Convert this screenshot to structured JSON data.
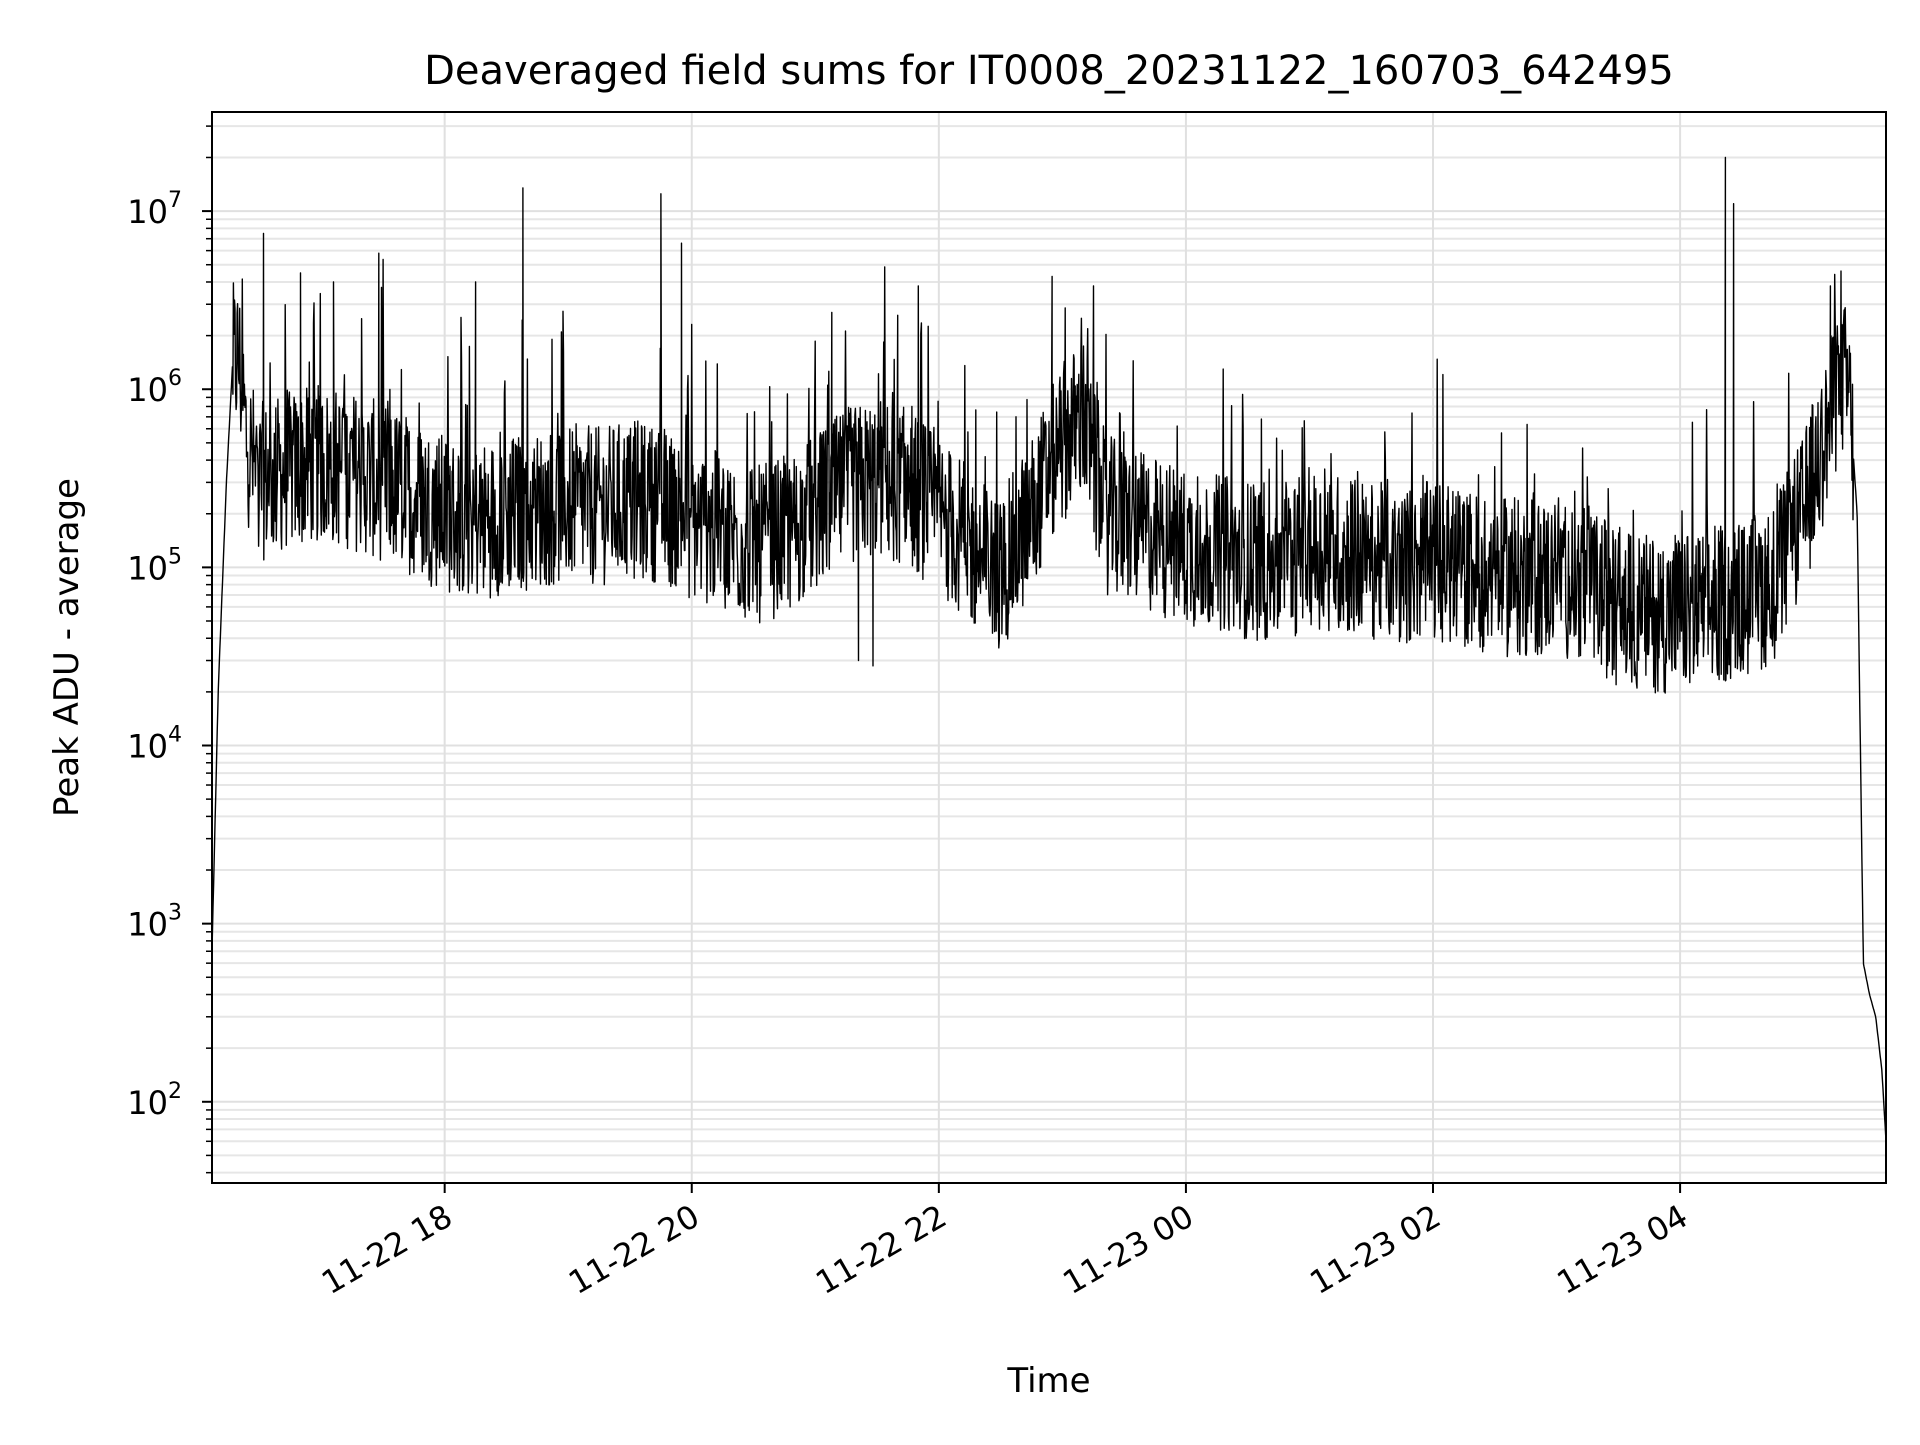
{
  "chart_data": {
    "type": "line",
    "title": "Deaveraged field sums for IT0008_20231122_160703_642495",
    "xlabel": "Time",
    "ylabel": "Peak ADU - average",
    "yscale": "log",
    "xlim": [
      "2023-11-22 16:07",
      "2023-11-23 05:40"
    ],
    "ylim": [
      35,
      36000000
    ],
    "x_ticks": [
      "11-22 18",
      "11-22 20",
      "11-22 22",
      "11-23 00",
      "11-23 02",
      "11-23 04"
    ],
    "x_tick_times": [
      "2023-11-22 18:00",
      "2023-11-22 20:00",
      "2023-11-22 22:00",
      "2023-11-23 00:00",
      "2023-11-23 02:00",
      "2023-11-23 04:00"
    ],
    "y_ticks": [
      {
        "base": "10",
        "exp": "2"
      },
      {
        "base": "10",
        "exp": "3"
      },
      {
        "base": "10",
        "exp": "4"
      },
      {
        "base": "10",
        "exp": "5"
      },
      {
        "base": "10",
        "exp": "6"
      },
      {
        "base": "10",
        "exp": "7"
      }
    ],
    "y_tick_values": [
      100,
      1000,
      10000,
      100000,
      1000000,
      10000000
    ],
    "grid": true,
    "series": [
      {
        "color": "#000000",
        "points": [
          [
            "2023-11-22 16:07",
            700
          ],
          [
            "2023-11-22 16:10",
            20000
          ],
          [
            "2023-11-22 16:14",
            300000
          ],
          [
            "2023-11-22 16:17",
            1400000
          ],
          [
            "2023-11-22 16:20",
            1500000
          ],
          [
            "2023-11-22 16:24",
            500000
          ],
          [
            "2023-11-22 16:30",
            300000
          ],
          [
            "2023-11-22 16:45",
            350000
          ],
          [
            "2023-11-22 17:00",
            380000
          ],
          [
            "2023-11-22 17:15",
            350000
          ],
          [
            "2023-11-22 17:30",
            300000
          ],
          [
            "2023-11-22 17:45",
            250000
          ],
          [
            "2023-11-22 18:00",
            200000
          ],
          [
            "2023-11-22 18:15",
            180000
          ],
          [
            "2023-11-22 18:30",
            200000
          ],
          [
            "2023-11-22 18:45",
            210000
          ],
          [
            "2023-11-22 19:00",
            230000
          ],
          [
            "2023-11-22 19:15",
            220000
          ],
          [
            "2023-11-22 19:30",
            240000
          ],
          [
            "2023-11-22 19:45",
            230000
          ],
          [
            "2023-11-22 20:00",
            180000
          ],
          [
            "2023-11-22 20:15",
            160000
          ],
          [
            "2023-11-22 20:30",
            130000
          ],
          [
            "2023-11-22 20:45",
            150000
          ],
          [
            "2023-11-22 21:00",
            200000
          ],
          [
            "2023-11-22 21:15",
            280000
          ],
          [
            "2023-11-22 21:30",
            320000
          ],
          [
            "2023-11-22 21:45",
            280000
          ],
          [
            "2023-11-22 22:00",
            200000
          ],
          [
            "2023-11-22 22:15",
            130000
          ],
          [
            "2023-11-22 22:30",
            90000
          ],
          [
            "2023-11-22 22:45",
            200000
          ],
          [
            "2023-11-22 23:00",
            500000
          ],
          [
            "2023-11-22 23:10",
            700000
          ],
          [
            "2023-11-22 23:20",
            200000
          ],
          [
            "2023-11-22 23:30",
            180000
          ],
          [
            "2023-11-22 23:45",
            150000
          ],
          [
            "2023-11-23 00:00",
            130000
          ],
          [
            "2023-11-23 00:15",
            120000
          ],
          [
            "2023-11-23 00:30",
            110000
          ],
          [
            "2023-11-23 00:45",
            100000
          ],
          [
            "2023-11-23 01:00",
            130000
          ],
          [
            "2023-11-23 01:15",
            120000
          ],
          [
            "2023-11-23 01:30",
            110000
          ],
          [
            "2023-11-23 01:45",
            100000
          ],
          [
            "2023-11-23 02:00",
            110000
          ],
          [
            "2023-11-23 02:15",
            100000
          ],
          [
            "2023-11-23 02:30",
            90000
          ],
          [
            "2023-11-23 02:45",
            85000
          ],
          [
            "2023-11-23 03:00",
            90000
          ],
          [
            "2023-11-23 03:15",
            80000
          ],
          [
            "2023-11-23 03:30",
            60000
          ],
          [
            "2023-11-23 03:45",
            55000
          ],
          [
            "2023-11-23 04:00",
            55000
          ],
          [
            "2023-11-23 04:15",
            60000
          ],
          [
            "2023-11-23 04:30",
            65000
          ],
          [
            "2023-11-23 04:45",
            80000
          ],
          [
            "2023-11-23 05:00",
            200000
          ],
          [
            "2023-11-23 05:10",
            500000
          ],
          [
            "2023-11-23 05:18",
            1200000
          ],
          [
            "2023-11-23 05:22",
            1000000
          ],
          [
            "2023-11-23 05:26",
            200000
          ],
          [
            "2023-11-23 05:29",
            600
          ],
          [
            "2023-11-23 05:32",
            400
          ],
          [
            "2023-11-23 05:35",
            300
          ],
          [
            "2023-11-23 05:38",
            150
          ],
          [
            "2023-11-23 05:40",
            60
          ]
        ],
        "spikes": [
          [
            "2023-11-22 16:32",
            7500000
          ],
          [
            "2023-11-22 16:50",
            4500000
          ],
          [
            "2023-11-22 17:06",
            4000000
          ],
          [
            "2023-11-22 17:28",
            5800000
          ],
          [
            "2023-11-22 18:15",
            4000000
          ],
          [
            "2023-11-22 18:38",
            13500000
          ],
          [
            "2023-11-22 19:45",
            12500000
          ],
          [
            "2023-11-22 19:55",
            6600000
          ],
          [
            "2023-11-22 21:08",
            2700000
          ],
          [
            "2023-11-22 21:21",
            30000
          ],
          [
            "2023-11-22 21:28",
            28000
          ],
          [
            "2023-11-22 21:40",
            2600000
          ],
          [
            "2023-11-22 21:50",
            3800000
          ],
          [
            "2023-11-22 22:55",
            4300000
          ],
          [
            "2023-11-23 04:22",
            20000000
          ],
          [
            "2023-11-23 04:26",
            11000000
          ],
          [
            "2023-11-23 05:13",
            3800000
          ],
          [
            "2023-11-23 05:20",
            2800000
          ]
        ]
      }
    ]
  }
}
